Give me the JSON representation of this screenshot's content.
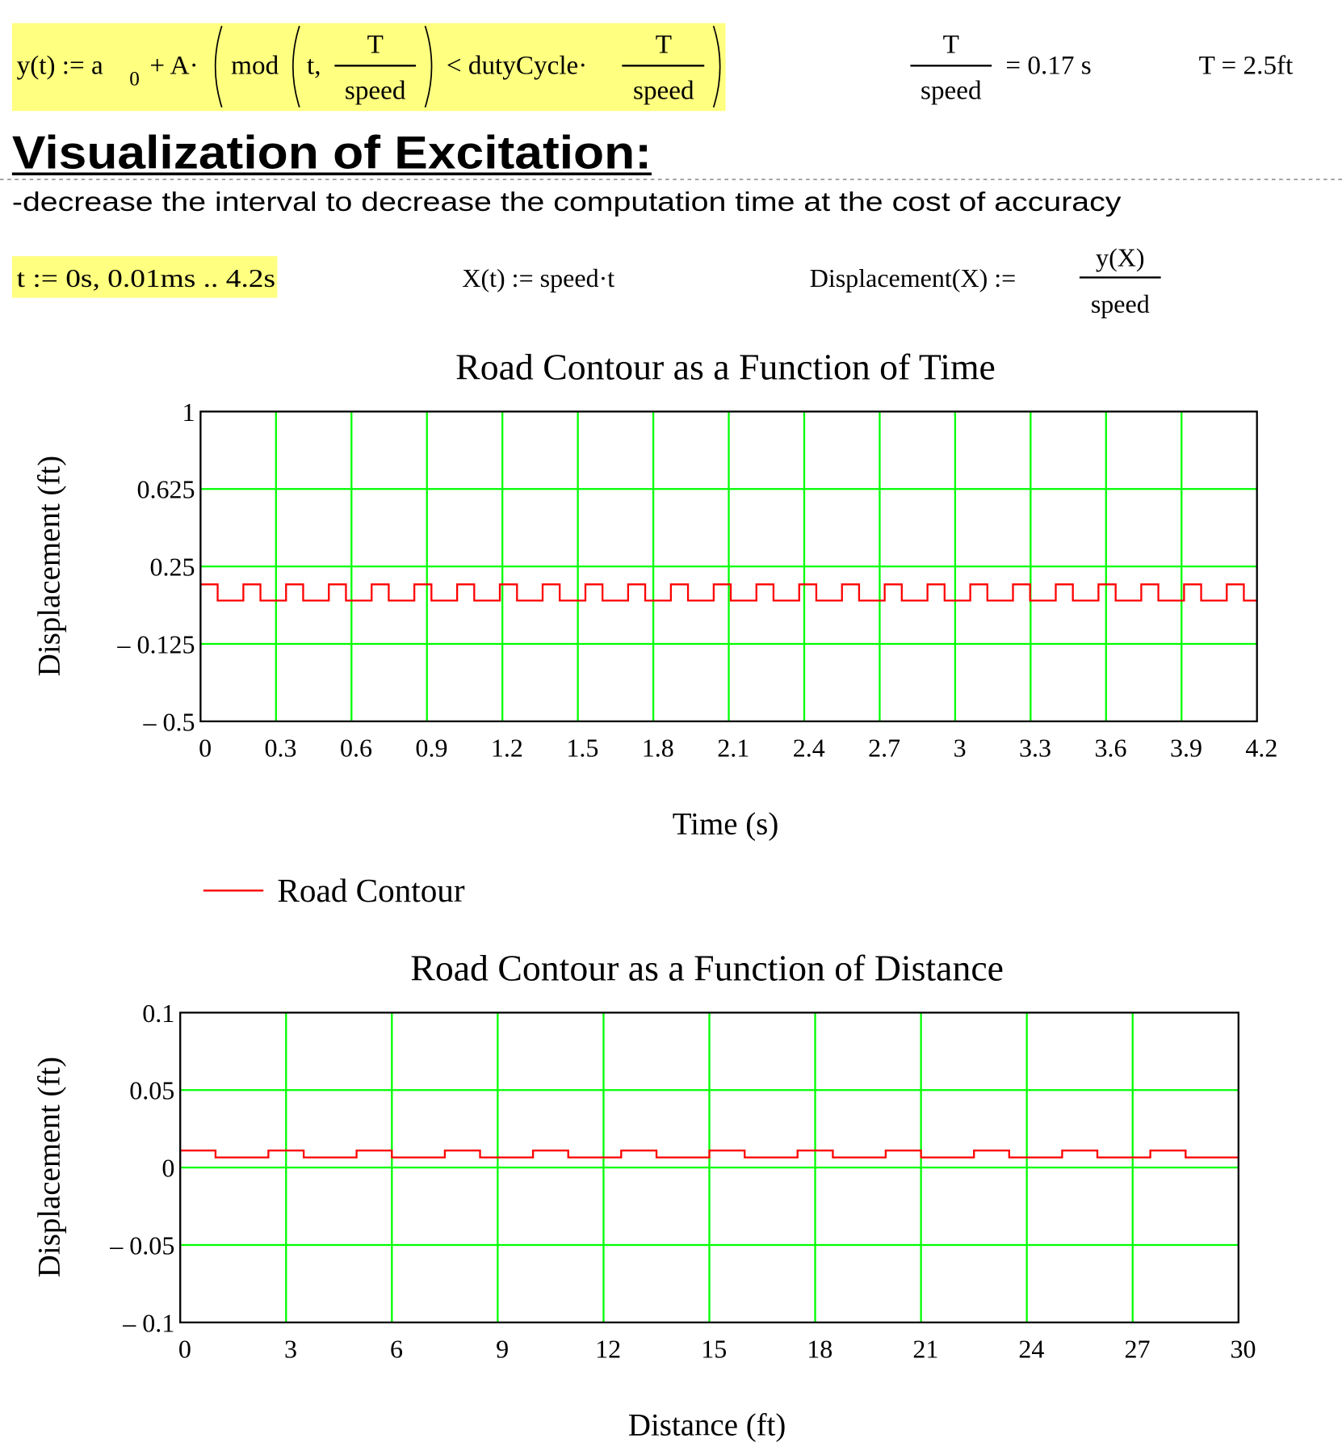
{
  "formulas": {
    "y_def": {
      "lhs": "y(t) := a",
      "sub": "0",
      "plus_a": "+ A·",
      "mod": "mod",
      "t_arg": "t,",
      "frac1_num": "T",
      "frac1_den": "speed",
      "lt_duty": "< dutyCycle·",
      "frac2_num": "T",
      "frac2_den": "speed"
    },
    "period_eval": {
      "num": "T",
      "den": "speed",
      "result": "= 0.17 s"
    },
    "T_eval": "T = 2.5ft",
    "t_range": "t := 0s, 0.01ms .. 4.2s",
    "X_def": "X(t) := speed·t",
    "disp_def": {
      "lhs": "Displacement(X) :=",
      "num": "y(X)",
      "den": "speed"
    }
  },
  "section": {
    "heading": "Visualization of Excitation:",
    "note": "-decrease the interval to decrease the computation time at the cost of accuracy"
  },
  "colors": {
    "highlight": "#ffff80",
    "grid": "#00ff00",
    "series": "#ff0000",
    "axes": "#000000"
  },
  "legend": {
    "label": "Road Contour"
  },
  "chart_data": [
    {
      "type": "line",
      "title": "Road Contour as a Function of Time",
      "xlabel": "Time (s)",
      "ylabel": "Displacement (ft)",
      "xlim": [
        0,
        4.2
      ],
      "ylim": [
        -0.5,
        1
      ],
      "xticks": [
        "0",
        "0.3",
        "0.6",
        "0.9",
        "1.2",
        "1.5",
        "1.8",
        "2.1",
        "2.4",
        "2.7",
        "3",
        "3.3",
        "3.6",
        "3.9",
        "4.2"
      ],
      "yticks": [
        "1",
        "0.625",
        "0.25",
        "– 0.125",
        "– 0.5"
      ],
      "ytick_values": [
        1,
        0.625,
        0.25,
        -0.125,
        -0.5
      ],
      "xtick_values": [
        0,
        0.3,
        0.6,
        0.9,
        1.2,
        1.5,
        1.8,
        2.1,
        2.4,
        2.7,
        3,
        3.3,
        3.6,
        3.9,
        4.2
      ],
      "grid": true,
      "series": [
        {
          "name": "Road Contour",
          "shape": "square-wave",
          "period": 0.17,
          "duty_cycle": 0.4,
          "high": 0.163,
          "low": 0.085
        }
      ]
    },
    {
      "type": "line",
      "title": "Road Contour as a Function of Distance",
      "xlabel": "Distance (ft)",
      "ylabel": "Displacement (ft)",
      "xlim": [
        0,
        30
      ],
      "ylim": [
        -0.1,
        0.1
      ],
      "xticks": [
        "0",
        "3",
        "6",
        "9",
        "12",
        "15",
        "18",
        "21",
        "24",
        "27",
        "30"
      ],
      "yticks": [
        "0.1",
        "0.05",
        "0",
        "– 0.05",
        "– 0.1"
      ],
      "ytick_values": [
        0.1,
        0.05,
        0,
        -0.05,
        -0.1
      ],
      "xtick_values": [
        0,
        3,
        6,
        9,
        12,
        15,
        18,
        21,
        24,
        27,
        30
      ],
      "grid": true,
      "series": [
        {
          "shape": "square-wave",
          "period": 2.5,
          "duty_cycle": 0.4,
          "high": 0.011,
          "low": 0.0065
        }
      ]
    }
  ]
}
